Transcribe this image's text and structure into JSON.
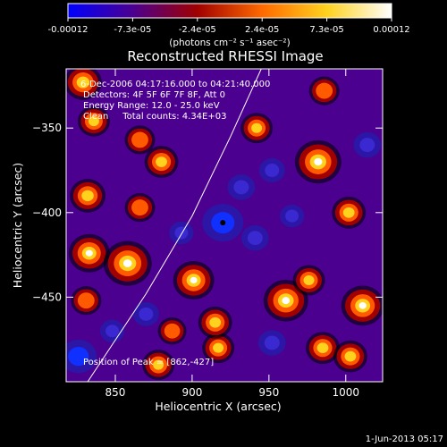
{
  "title": "Reconstructed RHESSI Image",
  "info_lines": [
    "6-Dec-2006 04:17:16.000 to 04:21:40.000",
    "Detectors: 4F 5F 6F 7F 8F, Att 0",
    "Energy Range: 12.0 - 25.0 keV",
    "Clean     Total counts: 4.34E+03"
  ],
  "peak_text": "Position of Peak = [862,-427]",
  "footer_date": "1-Jun-2013 05:17",
  "colorbar": {
    "tick_labels": [
      "-0.00012",
      "-7.3e-05",
      "-2.4e-05",
      "2.4e-05",
      "7.3e-05",
      "0.00012"
    ],
    "unit_label": "(photons cm⁻² s⁻¹ asec⁻²)",
    "range": [
      -0.00012,
      0.00012
    ],
    "colormap_stops": [
      "#0000ff",
      "#4b0090",
      "#a00000",
      "#ff6a00",
      "#ffd21e",
      "#ffffff"
    ]
  },
  "chart_data": {
    "type": "heatmap",
    "title": "Reconstructed RHESSI Image",
    "xlabel": "Heliocentric X (arcsec)",
    "ylabel": "Heliocentric Y (arcsec)",
    "xlim": [
      818,
      1024
    ],
    "ylim": [
      -500,
      -315
    ],
    "x_ticks": [
      850,
      900,
      950,
      1000
    ],
    "y_ticks": [
      -450,
      -400,
      -350
    ],
    "limb_curve": [
      [
        832,
        -500
      ],
      [
        870,
        -448
      ],
      [
        900,
        -402
      ],
      [
        925,
        -355
      ],
      [
        945,
        -315
      ]
    ],
    "peak_position": [
      862,
      -427
    ],
    "blobs": [
      {
        "x": 829,
        "y": -323,
        "v": 0.65
      },
      {
        "x": 836,
        "y": -346,
        "v": 0.5
      },
      {
        "x": 832,
        "y": -390,
        "v": 0.6
      },
      {
        "x": 833,
        "y": -424,
        "v": 0.75
      },
      {
        "x": 831,
        "y": -452,
        "v": 0.45
      },
      {
        "x": 826,
        "y": -485,
        "v": -0.85
      },
      {
        "x": 858,
        "y": -430,
        "v": 0.95
      },
      {
        "x": 866,
        "y": -397,
        "v": 0.45
      },
      {
        "x": 866,
        "y": -357,
        "v": 0.45
      },
      {
        "x": 870,
        "y": -460,
        "v": -0.5
      },
      {
        "x": 880,
        "y": -370,
        "v": 0.55
      },
      {
        "x": 887,
        "y": -470,
        "v": 0.4
      },
      {
        "x": 878,
        "y": -490,
        "v": 0.5
      },
      {
        "x": 901,
        "y": -440,
        "v": 0.75
      },
      {
        "x": 893,
        "y": -412,
        "v": -0.45
      },
      {
        "x": 917,
        "y": -480,
        "v": 0.5
      },
      {
        "x": 915,
        "y": -465,
        "v": 0.55
      },
      {
        "x": 920,
        "y": -406,
        "v": -1.0
      },
      {
        "x": 932,
        "y": -385,
        "v": -0.55
      },
      {
        "x": 942,
        "y": -350,
        "v": 0.5
      },
      {
        "x": 952,
        "y": -375,
        "v": -0.5
      },
      {
        "x": 941,
        "y": -415,
        "v": -0.55
      },
      {
        "x": 961,
        "y": -452,
        "v": 0.85
      },
      {
        "x": 976,
        "y": -440,
        "v": 0.5
      },
      {
        "x": 985,
        "y": -480,
        "v": 0.55
      },
      {
        "x": 1003,
        "y": -485,
        "v": 0.55
      },
      {
        "x": 982,
        "y": -370,
        "v": 0.9
      },
      {
        "x": 986,
        "y": -328,
        "v": 0.45
      },
      {
        "x": 1002,
        "y": -400,
        "v": 0.55
      },
      {
        "x": 1011,
        "y": -455,
        "v": 0.8
      },
      {
        "x": 1014,
        "y": -360,
        "v": -0.55
      },
      {
        "x": 965,
        "y": -402,
        "v": -0.45
      },
      {
        "x": 952,
        "y": -477,
        "v": -0.55
      },
      {
        "x": 848,
        "y": -470,
        "v": -0.45
      }
    ]
  }
}
